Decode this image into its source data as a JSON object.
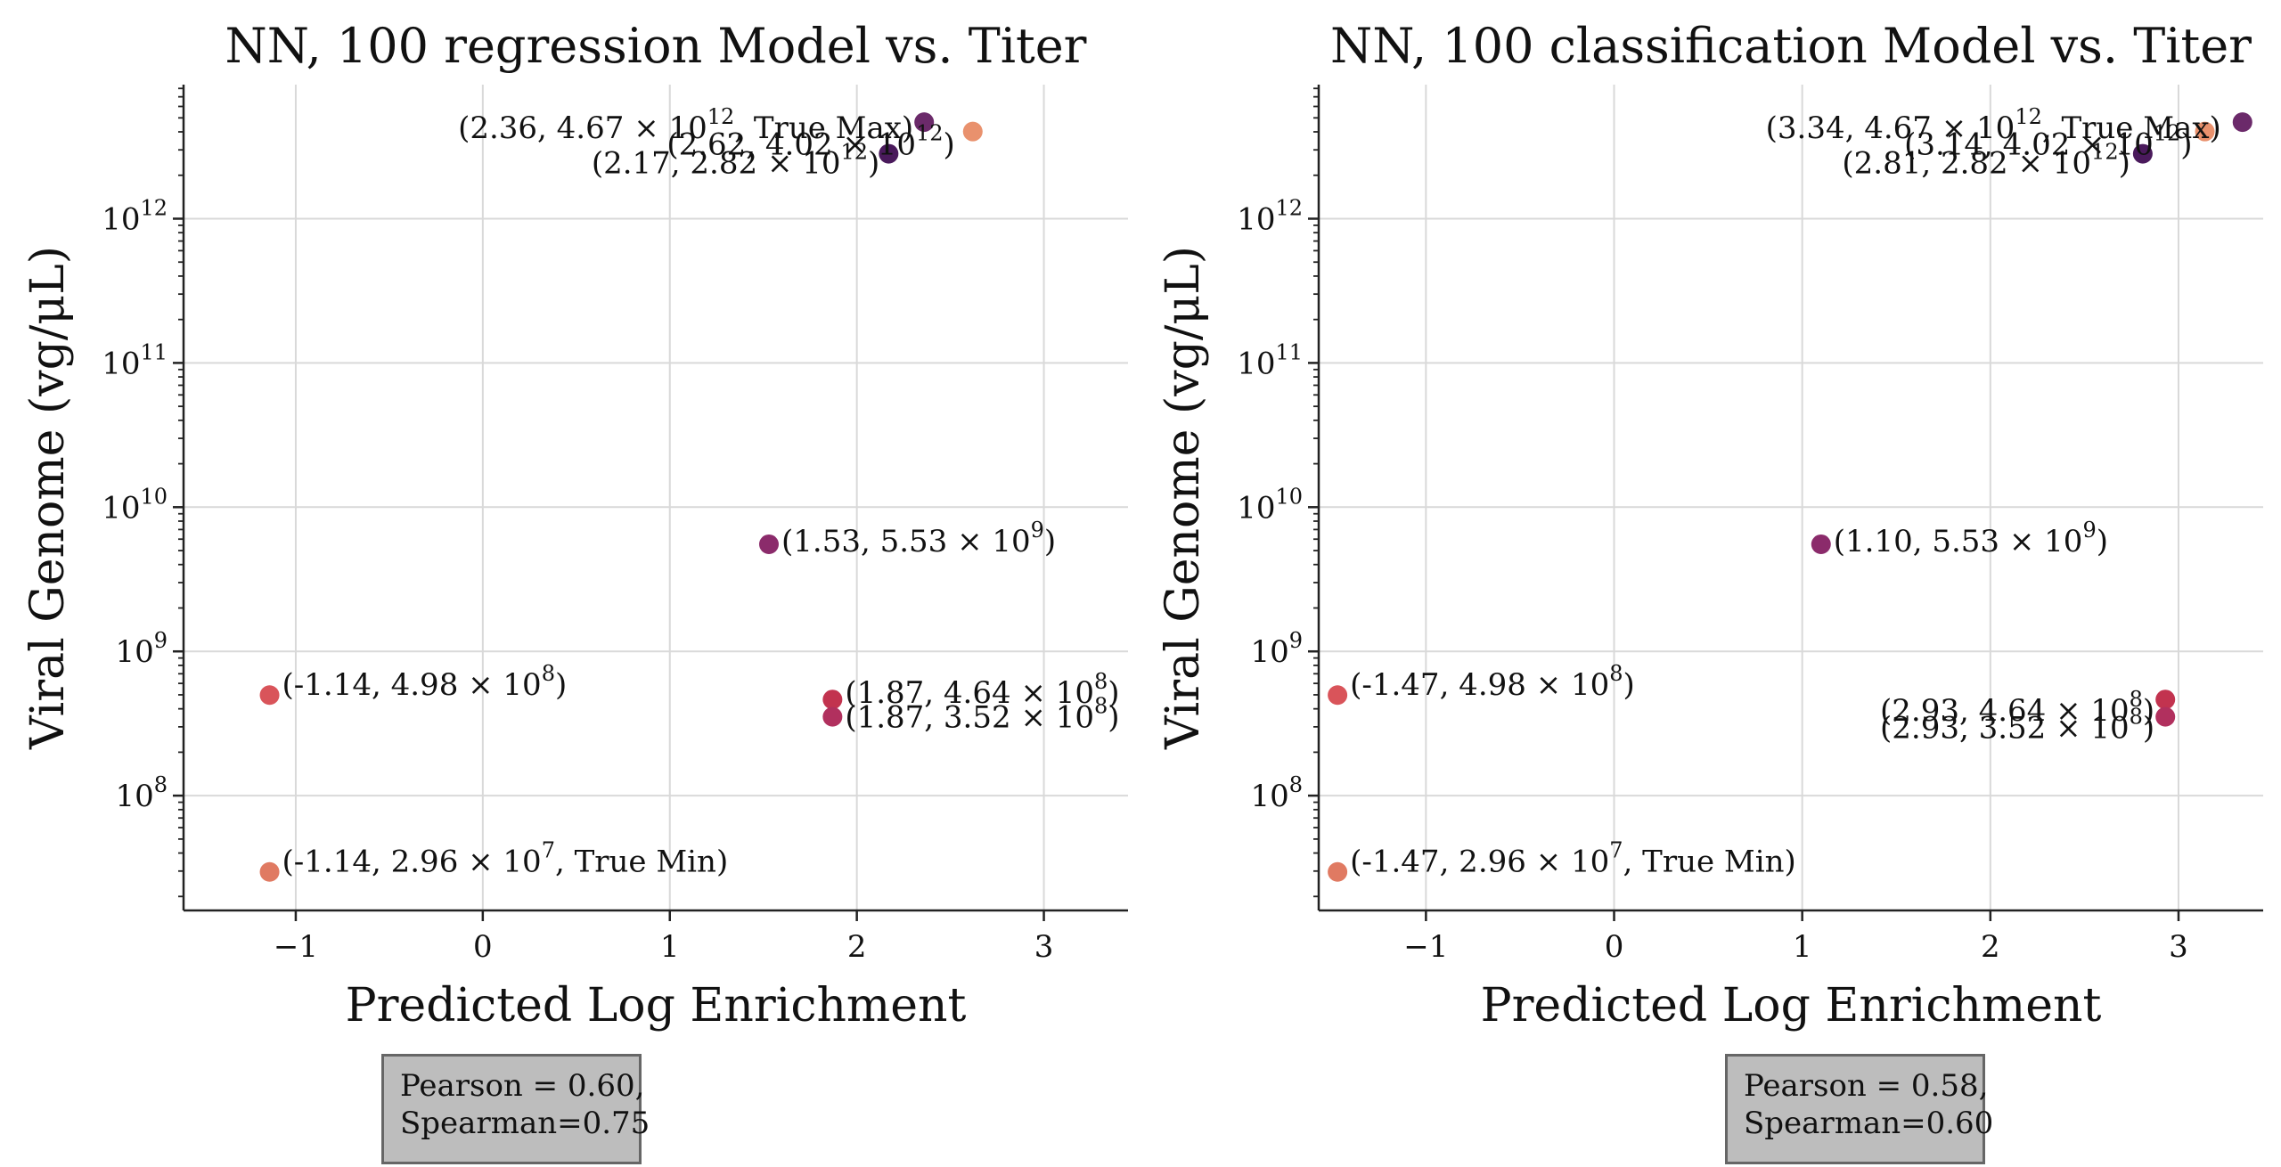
{
  "chart_data": [
    {
      "type": "scatter",
      "title": "NN, 100 regression Model vs. Titer",
      "xlabel": "Predicted Log Enrichment",
      "ylabel": "Viral Genome (vg/μL)",
      "xlim": [
        -1.6,
        3.45
      ],
      "ylim": [
        16000000,
        8500000000000
      ],
      "yscale": "log",
      "grid": true,
      "xticks": [
        -1,
        0,
        1,
        2,
        3
      ],
      "xtick_labels": [
        "−1",
        "0",
        "1",
        "2",
        "3"
      ],
      "yticks": [
        {
          "value": 100000000,
          "base": "10",
          "exp": "8"
        },
        {
          "value": 1000000000,
          "base": "10",
          "exp": "9"
        },
        {
          "value": 10000000000,
          "base": "10",
          "exp": "10"
        },
        {
          "value": 100000000000,
          "base": "10",
          "exp": "11"
        },
        {
          "value": 1000000000000,
          "base": "10",
          "exp": "12"
        }
      ],
      "points": [
        {
          "x": 2.36,
          "y": 4670000000000,
          "color": "#6b2a6a",
          "label": {
            "pre": "(2.36, 4.67 × 10",
            "sup": "12",
            "post": ", True Max)",
            "anchor": "end",
            "dx": -12,
            "dy": 18
          }
        },
        {
          "x": 2.62,
          "y": 4020000000000,
          "color": "#e9916d",
          "label": {
            "pre": "(2.62, 4.02 × 10",
            "sup": "12",
            "post": ")",
            "anchor": "end",
            "dx": -20,
            "dy": 26
          }
        },
        {
          "x": 2.17,
          "y": 2820000000000,
          "color": "#4a1a5c",
          "label": {
            "pre": "(2.17, 2.82 × 10",
            "sup": "12",
            "post": ")",
            "anchor": "end",
            "dx": -10,
            "dy": 22
          }
        },
        {
          "x": 1.53,
          "y": 5530000000,
          "color": "#8b2b6b",
          "label": {
            "pre": "(1.53, 5.53 × 10",
            "sup": "9",
            "post": ")",
            "anchor": "start",
            "dx": 14,
            "dy": 8
          }
        },
        {
          "x": 1.87,
          "y": 464000000,
          "color": "#c2334f",
          "label": {
            "pre": "(1.87, 4.64 × 10",
            "sup": "8",
            "post": ")",
            "anchor": "start",
            "dx": 14,
            "dy": 4
          }
        },
        {
          "x": 1.87,
          "y": 352000000,
          "color": "#b1305e",
          "label": {
            "pre": "(1.87, 3.52 × 10",
            "sup": "8",
            "post": ")",
            "anchor": "start",
            "dx": 14,
            "dy": 12
          }
        },
        {
          "x": -1.14,
          "y": 498000000,
          "color": "#d9545a",
          "label": {
            "pre": "(-1.14, 4.98 × 10",
            "sup": "8",
            "post": ")",
            "anchor": "start",
            "dx": 14,
            "dy": 0
          }
        },
        {
          "x": -1.14,
          "y": 29600000,
          "color": "#e07a62",
          "label": {
            "pre": "(-1.14, 2.96 × 10",
            "sup": "7",
            "post": ", True Min)",
            "anchor": "start",
            "dx": 14,
            "dy": 0
          }
        }
      ],
      "stats": {
        "line1": "Pearson = 0.60,",
        "line2": "Spearman=0.75"
      }
    },
    {
      "type": "scatter",
      "title": "NN, 100 classification Model vs. Titer",
      "xlabel": "Predicted Log Enrichment",
      "ylabel": "Viral Genome (vg/μL)",
      "xlim": [
        -1.57,
        3.45
      ],
      "ylim": [
        16000000,
        8500000000000
      ],
      "yscale": "log",
      "grid": true,
      "xticks": [
        -1,
        0,
        1,
        2,
        3
      ],
      "xtick_labels": [
        "−1",
        "0",
        "1",
        "2",
        "3"
      ],
      "yticks": [
        {
          "value": 100000000,
          "base": "10",
          "exp": "8"
        },
        {
          "value": 1000000000,
          "base": "10",
          "exp": "9"
        },
        {
          "value": 10000000000,
          "base": "10",
          "exp": "10"
        },
        {
          "value": 100000000000,
          "base": "10",
          "exp": "11"
        },
        {
          "value": 1000000000000,
          "base": "10",
          "exp": "12"
        }
      ],
      "points": [
        {
          "x": 3.34,
          "y": 4670000000000,
          "color": "#6b2a6a",
          "label": {
            "pre": "(3.34, 4.67 × 10",
            "sup": "12",
            "post": ", True Max)",
            "anchor": "end",
            "dx": -24,
            "dy": 18
          }
        },
        {
          "x": 3.14,
          "y": 4020000000000,
          "color": "#e9916d",
          "label": {
            "pre": "(3.14, 4.02 × 10",
            "sup": "12",
            "post": ")",
            "anchor": "end",
            "dx": -14,
            "dy": 26
          }
        },
        {
          "x": 2.81,
          "y": 2820000000000,
          "color": "#4a1a5c",
          "label": {
            "pre": "(2.81, 2.82 × 10",
            "sup": "12",
            "post": ")",
            "anchor": "end",
            "dx": -14,
            "dy": 22
          }
        },
        {
          "x": 1.1,
          "y": 5530000000,
          "color": "#8b2b6b",
          "label": {
            "pre": "(1.10, 5.53 × 10",
            "sup": "9",
            "post": ")",
            "anchor": "start",
            "dx": 14,
            "dy": 8
          }
        },
        {
          "x": 2.93,
          "y": 464000000,
          "color": "#c2334f",
          "label": {
            "pre": "(2.93, 4.64 × 10",
            "sup": "8",
            "post": ")",
            "anchor": "end",
            "dx": -12,
            "dy": 24
          }
        },
        {
          "x": 2.93,
          "y": 352000000,
          "color": "#b1305e",
          "label": {
            "pre": "(2.93, 3.52 × 10",
            "sup": "8",
            "post": ")",
            "anchor": "end",
            "dx": -12,
            "dy": 24
          }
        },
        {
          "x": -1.47,
          "y": 498000000,
          "color": "#d9545a",
          "label": {
            "pre": "(-1.47, 4.98 × 10",
            "sup": "8",
            "post": ")",
            "anchor": "start",
            "dx": 14,
            "dy": 0
          }
        },
        {
          "x": -1.47,
          "y": 29600000,
          "color": "#e07a62",
          "label": {
            "pre": "(-1.47, 2.96 × 10",
            "sup": "7",
            "post": ", True Min)",
            "anchor": "start",
            "dx": 14,
            "dy": 0
          }
        }
      ],
      "stats": {
        "line1": "Pearson = 0.58,",
        "line2": "Spearman=0.60"
      }
    }
  ]
}
